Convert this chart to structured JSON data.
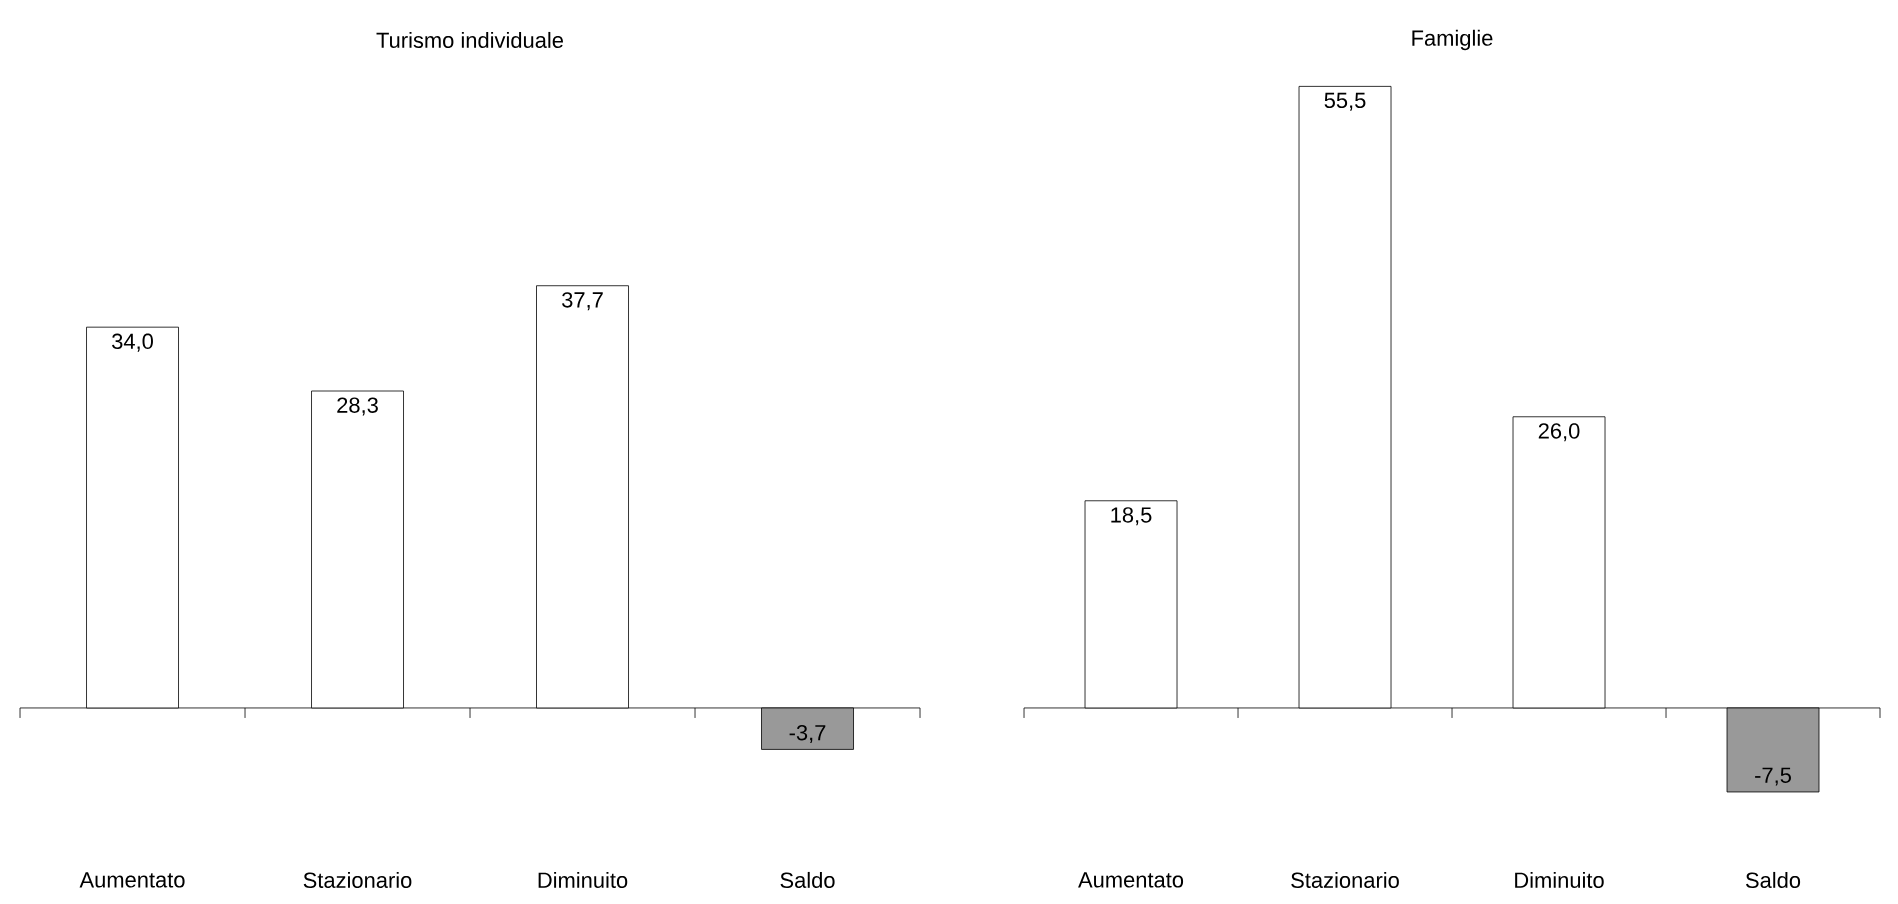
{
  "chart_data": [
    {
      "type": "bar",
      "title": "Turismo individuale",
      "categories": [
        "Aumentato",
        "Stazionario",
        "Diminuito",
        "Saldo"
      ],
      "values": [
        34.0,
        28.3,
        37.7,
        -3.7
      ],
      "value_labels": [
        "34,0",
        "28,3",
        "37,7",
        "-3,7"
      ],
      "colors": [
        "#ffffff",
        "#ffffff",
        "#ffffff",
        "#999999"
      ]
    },
    {
      "type": "bar",
      "title": "Famiglie",
      "categories": [
        "Aumentato",
        "Stazionario",
        "Diminuito",
        "Saldo"
      ],
      "values": [
        18.5,
        55.5,
        26.0,
        -7.5
      ],
      "value_labels": [
        "18,5",
        "55,5",
        "26,0",
        "-7,5"
      ],
      "colors": [
        "#ffffff",
        "#ffffff",
        "#ffffff",
        "#999999"
      ]
    }
  ]
}
